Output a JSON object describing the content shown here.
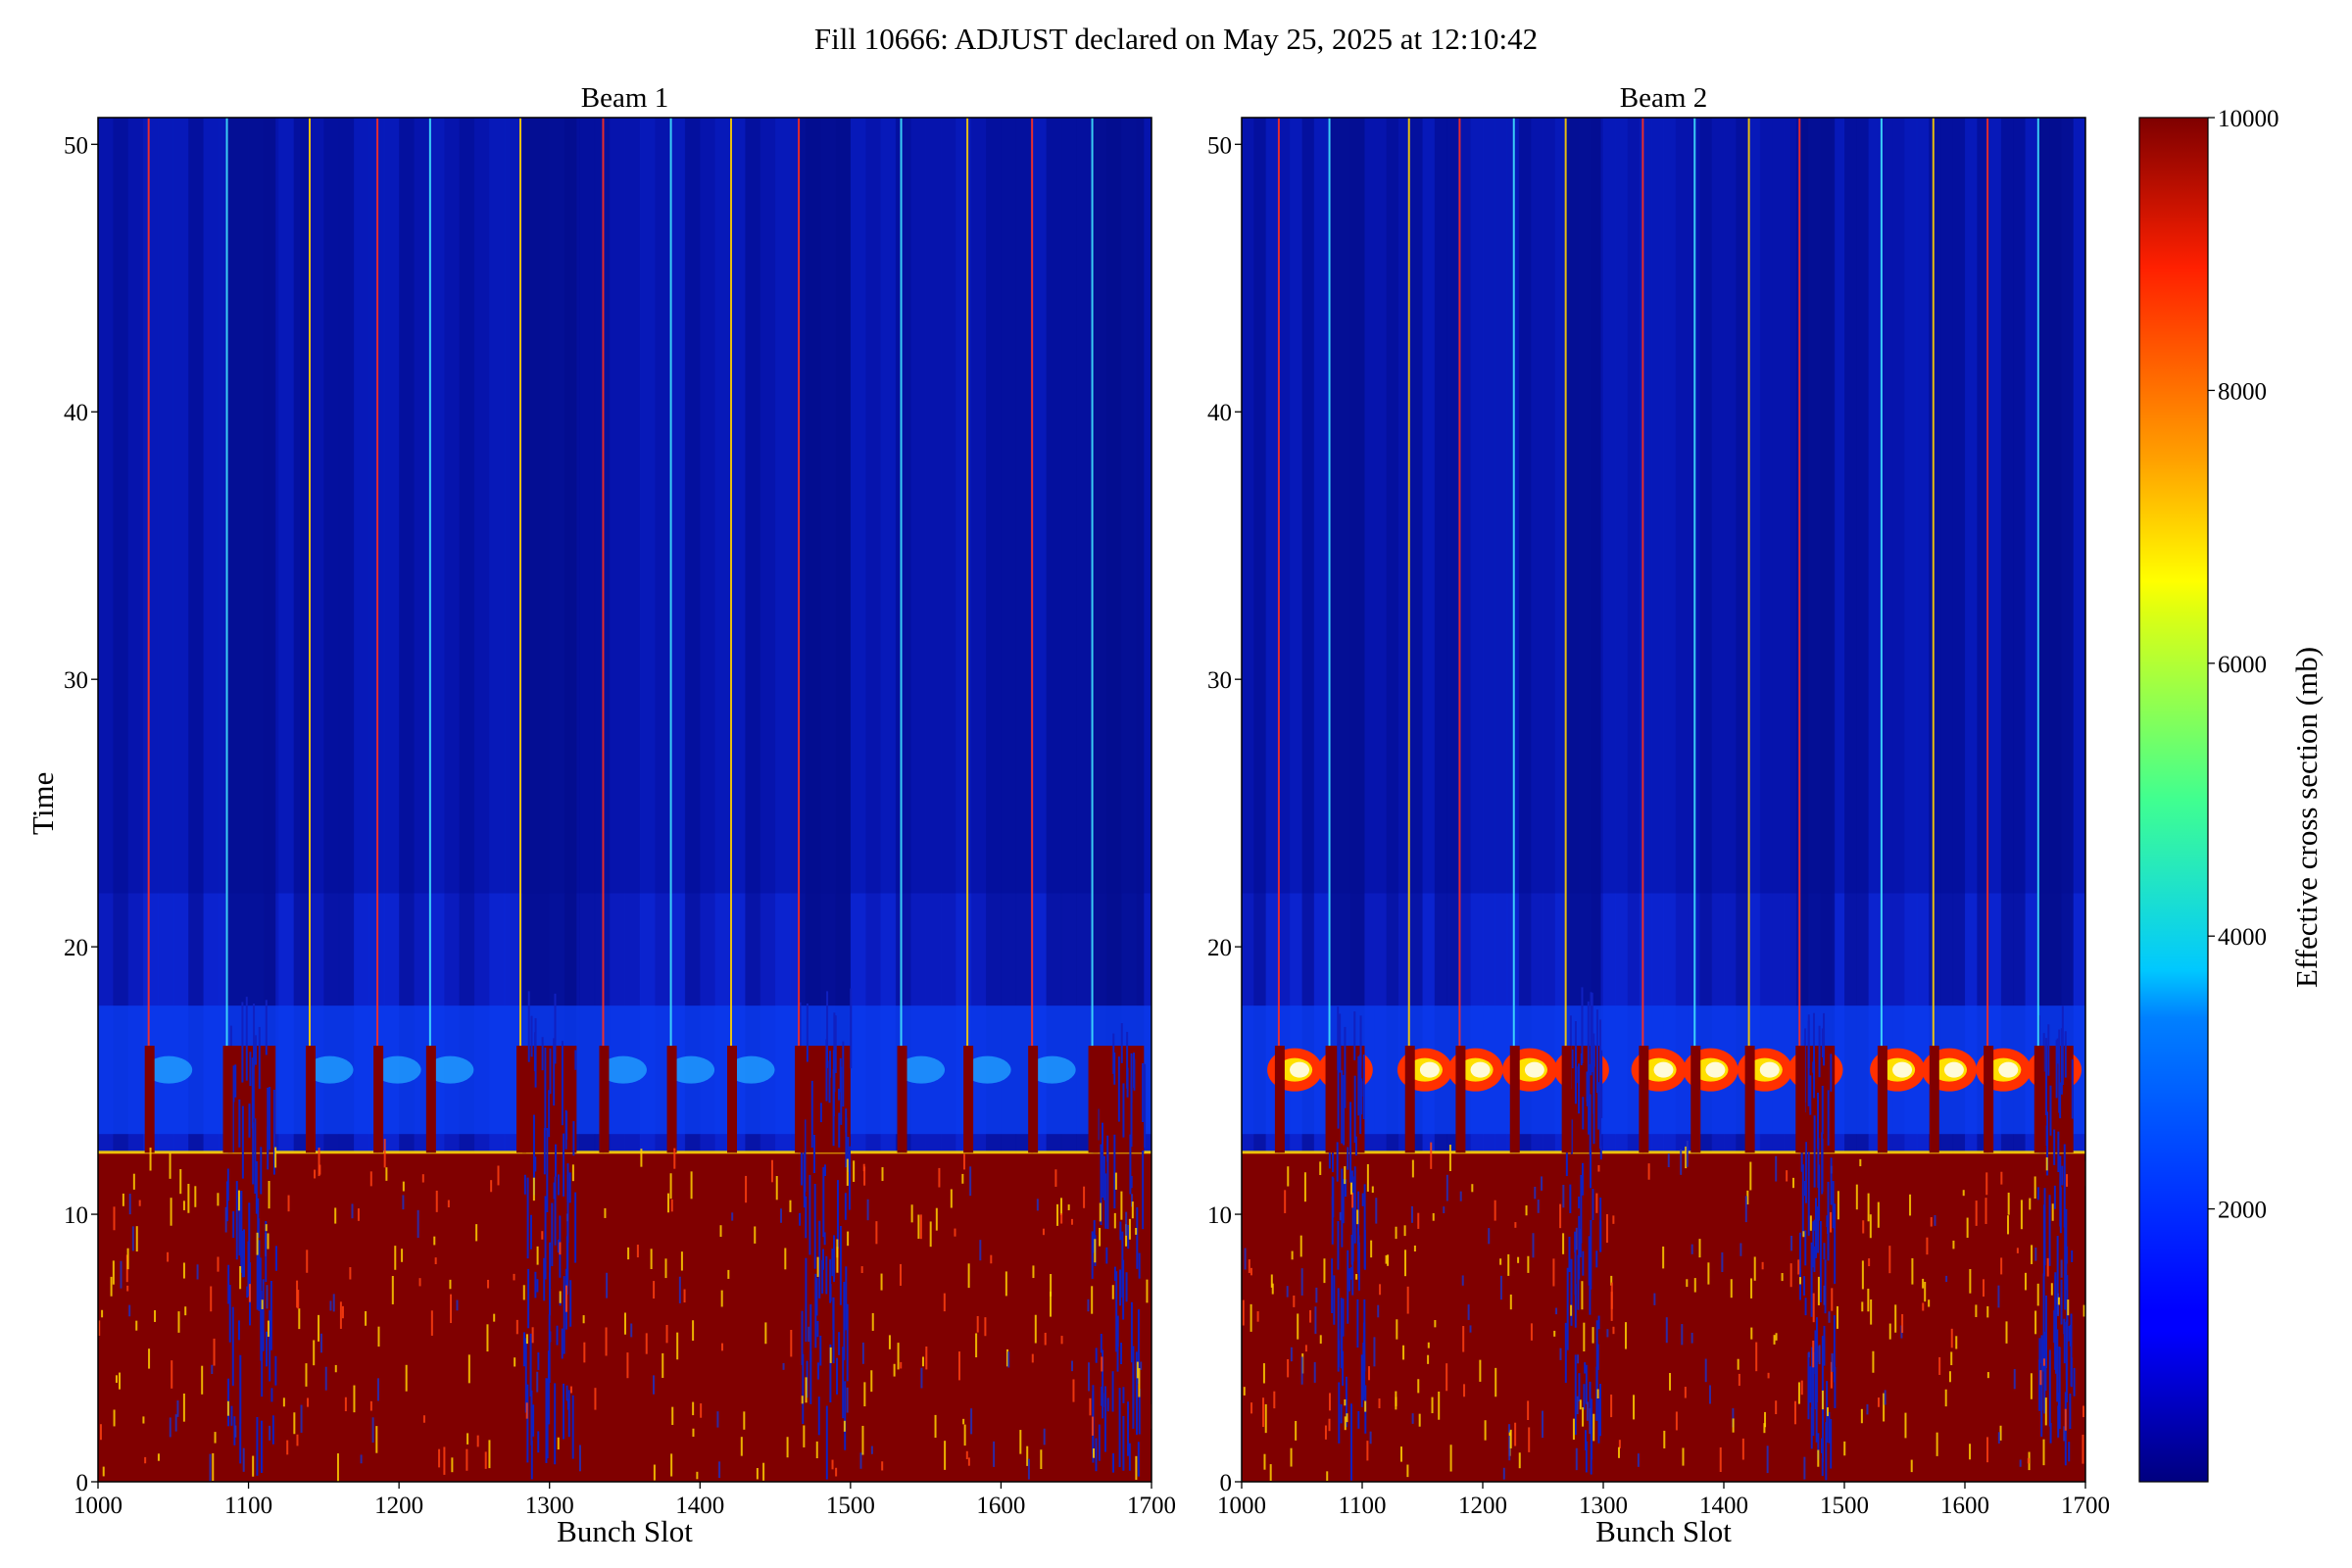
{
  "figure": {
    "suptitle": "Fill 10666: ADJUST declared on May 25, 2025 at 12:10:42"
  },
  "chart_data": [
    {
      "type": "heatmap",
      "title": "Beam 1",
      "xlabel": "Bunch Slot",
      "ylabel": "Time",
      "xlim": [
        1000,
        1700
      ],
      "ylim": [
        0,
        51
      ],
      "xticks": [
        1000,
        1100,
        1200,
        1300,
        1400,
        1500,
        1600,
        1700
      ],
      "yticks": [
        0,
        10,
        20,
        30,
        40,
        50
      ],
      "xticklabels": [
        "1000",
        "1100",
        "1200",
        "1300",
        "1400",
        "1500",
        "1600",
        "1700"
      ],
      "yticklabels": [
        "0",
        "10",
        "20",
        "30",
        "40",
        "50"
      ],
      "colormap": "jet",
      "high_region_until_time": 12.3,
      "blowup_band_time": [
        13,
        16.3
      ],
      "bright_slots": [
        1033,
        1085,
        1140,
        1185,
        1220,
        1280,
        1335,
        1380,
        1420,
        1465,
        1533,
        1577,
        1620,
        1660
      ],
      "dense_train_slots": [
        [
          1085,
          1118
        ],
        [
          1282,
          1318
        ],
        [
          1465,
          1500
        ],
        [
          1660,
          1695
        ]
      ]
    },
    {
      "type": "heatmap",
      "title": "Beam 2",
      "xlabel": "Bunch Slot",
      "ylabel": "",
      "xlim": [
        1000,
        1700
      ],
      "ylim": [
        0,
        51
      ],
      "xticks": [
        1000,
        1100,
        1200,
        1300,
        1400,
        1500,
        1600,
        1700
      ],
      "yticks": [
        0,
        10,
        20,
        30,
        40,
        50
      ],
      "xticklabels": [
        "1000",
        "1100",
        "1200",
        "1300",
        "1400",
        "1500",
        "1600",
        "1700"
      ],
      "yticklabels": [
        "0",
        "10",
        "20",
        "30",
        "40",
        "50"
      ],
      "colormap": "jet",
      "high_region_until_time": 12.3,
      "blowup_band_time": [
        13,
        16.3
      ],
      "bright_slots": [
        1030,
        1072,
        1138,
        1180,
        1225,
        1268,
        1332,
        1375,
        1420,
        1462,
        1530,
        1573,
        1618,
        1660
      ],
      "dense_train_slots": [
        [
          1072,
          1102
        ],
        [
          1268,
          1298
        ],
        [
          1462,
          1492
        ],
        [
          1660,
          1690
        ]
      ]
    }
  ],
  "colorbar": {
    "label": "Effective cross section (mb)",
    "range": [
      0,
      10000
    ],
    "ticks": [
      2000,
      4000,
      6000,
      8000,
      10000
    ],
    "ticklabels": [
      "2000",
      "4000",
      "6000",
      "8000",
      "10000"
    ]
  }
}
